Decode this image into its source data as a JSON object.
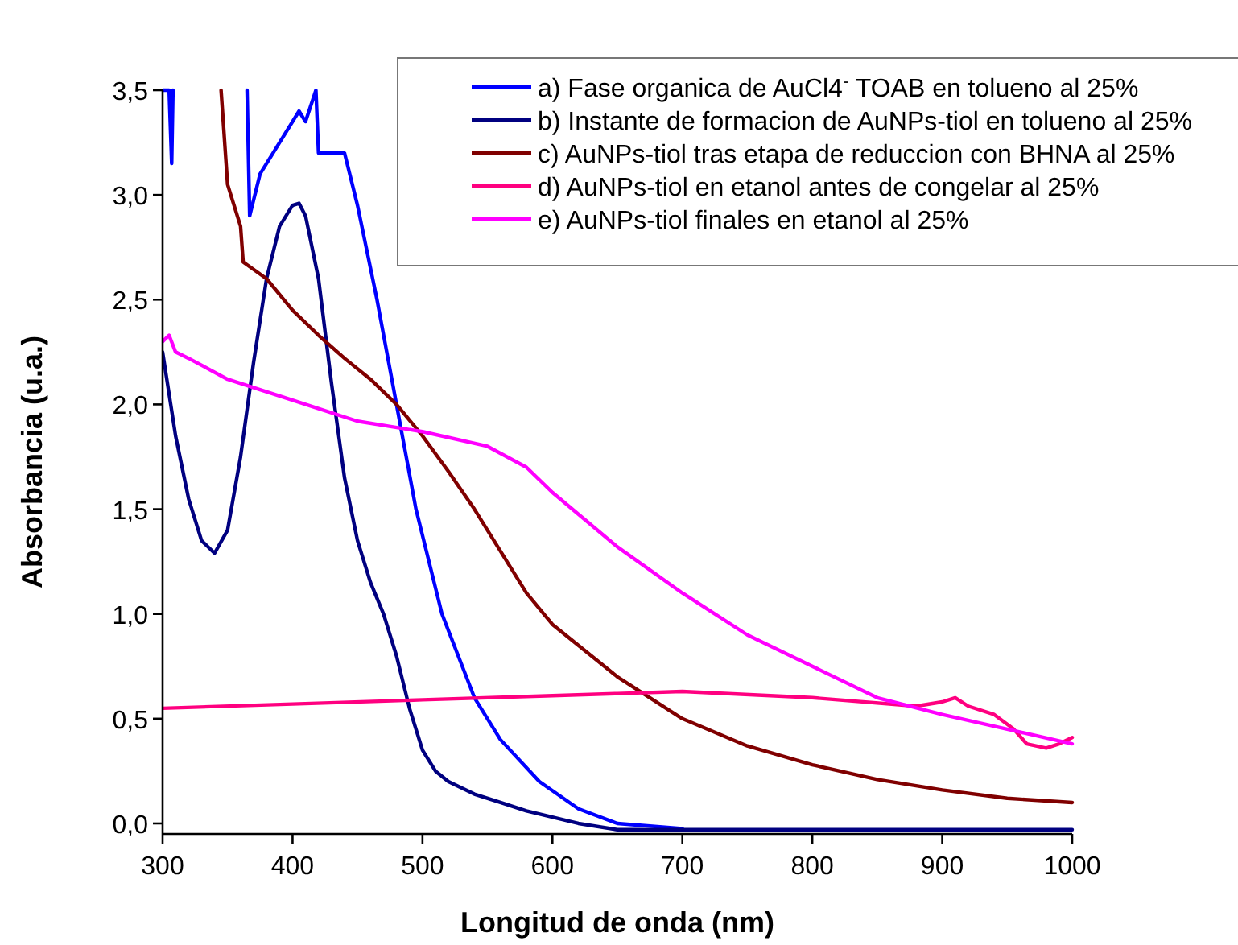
{
  "chart_data": {
    "type": "line",
    "xlabel": "Longitud de onda (nm)",
    "ylabel": "Absorbancia (u.a.)",
    "xlim": [
      300,
      1000
    ],
    "xticks": [
      300,
      400,
      500,
      600,
      700,
      800,
      900,
      1000
    ],
    "ylim": [
      -0.05,
      3.5
    ],
    "yticks": [
      {
        "value": 0,
        "label": "0,0"
      },
      {
        "value": 0.5,
        "label": "0,5"
      },
      {
        "value": 1,
        "label": "1,0"
      },
      {
        "value": 1.5,
        "label": "1,5"
      },
      {
        "value": 2,
        "label": "2,0"
      },
      {
        "value": 2.5,
        "label": "2,5"
      },
      {
        "value": 3,
        "label": "3,0"
      },
      {
        "value": 3.5,
        "label": "3,5"
      }
    ],
    "grid": false,
    "legend": "top right",
    "line_style": "solid",
    "marker": "none",
    "series": [
      {
        "name": "a) Fase organica de AuCl4$^{-}$ TOAB en tolueno al 25%",
        "color": "#0000ff",
        "x": [
          300,
          305,
          307,
          308,
          309,
          365,
          367,
          375,
          385,
          395,
          405,
          410,
          418,
          420,
          425,
          440,
          450,
          465,
          480,
          495,
          515,
          540,
          560,
          590,
          620,
          650,
          700
        ],
        "values": [
          3.5,
          3.5,
          3.15,
          3.5,
          null,
          3.5,
          2.9,
          3.1,
          3.2,
          3.3,
          3.4,
          3.35,
          3.5,
          3.2,
          3.2,
          3.2,
          2.95,
          2.5,
          2.0,
          1.5,
          1.0,
          0.6,
          0.4,
          0.2,
          0.07,
          0.0,
          -0.025
        ]
      },
      {
        "name": "b) Instante de formacion de AuNPs-tiol en tolueno al 25%",
        "color": "#000080",
        "x": [
          300,
          310,
          320,
          330,
          340,
          350,
          360,
          370,
          380,
          390,
          400,
          405,
          410,
          420,
          430,
          440,
          450,
          460,
          470,
          480,
          490,
          500,
          510,
          520,
          540,
          560,
          580,
          600,
          620,
          650,
          700,
          800,
          900,
          1000
        ],
        "values": [
          2.25,
          1.85,
          1.55,
          1.35,
          1.29,
          1.4,
          1.75,
          2.2,
          2.6,
          2.85,
          2.95,
          2.96,
          2.9,
          2.6,
          2.1,
          1.65,
          1.35,
          1.15,
          1.0,
          0.8,
          0.55,
          0.35,
          0.25,
          0.2,
          0.14,
          0.1,
          0.06,
          0.03,
          0.0,
          -0.03,
          -0.03,
          -0.03,
          -0.03,
          -0.03
        ]
      },
      {
        "name": "c) AuNPs-tiol tras etapa de reduccion con BHNA al 25%",
        "color": "#800000",
        "x": [
          345,
          350,
          360,
          362,
          380,
          400,
          420,
          440,
          460,
          480,
          500,
          520,
          540,
          560,
          580,
          600,
          650,
          700,
          750,
          800,
          850,
          900,
          950,
          1000
        ],
        "values": [
          3.5,
          3.05,
          2.85,
          2.68,
          2.6,
          2.45,
          2.33,
          2.22,
          2.12,
          2.0,
          1.85,
          1.68,
          1.5,
          1.3,
          1.1,
          0.95,
          0.7,
          0.5,
          0.37,
          0.28,
          0.21,
          0.16,
          0.12,
          0.1
        ]
      },
      {
        "name": "d) AuNPs-tiol en etanol antes de congelar al 25%",
        "color": "#ff0080",
        "x": [
          300,
          400,
          500,
          600,
          650,
          700,
          800,
          880,
          900,
          910,
          920,
          940,
          955,
          965,
          980,
          990,
          1000
        ],
        "values": [
          0.55,
          0.57,
          0.59,
          0.61,
          0.62,
          0.63,
          0.6,
          0.56,
          0.58,
          0.6,
          0.56,
          0.52,
          0.45,
          0.38,
          0.36,
          0.38,
          0.41
        ]
      },
      {
        "name": "e) AuNPs-tiol finales en etanol al 25%",
        "color": "#ff00ff",
        "x": [
          300,
          305,
          310,
          320,
          350,
          400,
          450,
          500,
          550,
          580,
          600,
          650,
          700,
          750,
          800,
          850,
          900,
          950,
          1000
        ],
        "values": [
          2.3,
          2.33,
          2.25,
          2.22,
          2.12,
          2.02,
          1.92,
          1.87,
          1.8,
          1.7,
          1.58,
          1.32,
          1.1,
          0.9,
          0.75,
          0.6,
          0.52,
          0.45,
          0.38
        ]
      }
    ]
  }
}
